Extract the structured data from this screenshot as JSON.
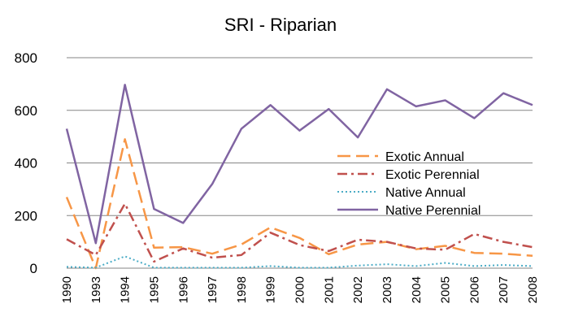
{
  "chart_data": {
    "type": "line",
    "title": "SRI - Riparian",
    "xlabel": "",
    "ylabel": "",
    "ylim": [
      0,
      800
    ],
    "yticks": [
      "0",
      "200",
      "400",
      "600",
      "800"
    ],
    "grid": "horizontal",
    "legend_position": "right",
    "categories": [
      "1990",
      "1993",
      "1994",
      "1995",
      "1996",
      "1997",
      "1998",
      "1999",
      "2000",
      "2001",
      "2002",
      "2003",
      "2004",
      "2005",
      "2006",
      "2007",
      "2008"
    ],
    "series": [
      {
        "name": "Exotic Annual",
        "color": "#F79646",
        "dash": "long-dash",
        "values": [
          270,
          0,
          490,
          78,
          80,
          55,
          90,
          155,
          115,
          53,
          90,
          100,
          72,
          85,
          58,
          55,
          47
        ]
      },
      {
        "name": "Exotic Perennial",
        "color": "#C0504D",
        "dash": "dash-dot",
        "values": [
          110,
          50,
          245,
          25,
          75,
          40,
          50,
          135,
          88,
          65,
          108,
          100,
          75,
          70,
          130,
          100,
          80
        ]
      },
      {
        "name": "Native Annual",
        "color": "#4BACC6",
        "dash": "dotted",
        "values": [
          5,
          2,
          45,
          2,
          2,
          2,
          2,
          8,
          2,
          2,
          10,
          15,
          8,
          20,
          8,
          12,
          8
        ]
      },
      {
        "name": "Native Perennial",
        "color": "#8064A2",
        "dash": "solid",
        "values": [
          530,
          95,
          697,
          225,
          172,
          320,
          530,
          620,
          523,
          605,
          497,
          680,
          615,
          638,
          570,
          665,
          620
        ]
      }
    ]
  }
}
